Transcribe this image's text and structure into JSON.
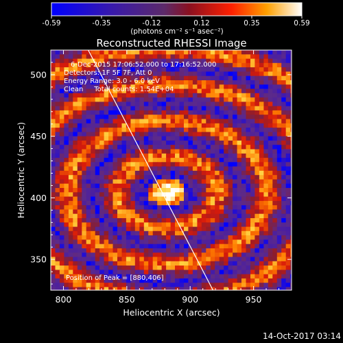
{
  "chart_data": {
    "type": "heatmap",
    "title": "Reconstructed RHESSI Image",
    "xlabel": "Heliocentric X (arcsec)",
    "ylabel": "Heliocentric Y (arcsec)",
    "xlim": [
      790,
      980
    ],
    "ylim": [
      325,
      520
    ],
    "x_ticks": [
      800,
      850,
      900,
      950
    ],
    "y_ticks": [
      350,
      400,
      450,
      500
    ],
    "colorbar": {
      "ticks": [
        "-0.59",
        "-0.35",
        "-0.12",
        "0.12",
        "0.35",
        "0.59"
      ],
      "range": [
        -0.59,
        0.59
      ],
      "unit_label": "(photons cm⁻² s⁻¹ asec⁻²)"
    },
    "annotations": {
      "time_range": "6-Dec-2015 17:06:52.000 to 17:16:52.000",
      "detectors": "Detectors: 1F 5F 7F, Att 0",
      "energy_range": "Energy Range: 3.0 - 6.0 keV",
      "clean": "Clean     Total counts: 1.54E+04",
      "peak": "Position of Peak = [880,406]"
    },
    "peak_position": [
      880,
      406
    ],
    "limb_line": [
      [
        812,
        535
      ],
      [
        918,
        325
      ]
    ],
    "footer_date": "14-Oct-2017 03:14",
    "grid": false,
    "colormap": [
      "#0000ff",
      "#4b1fa0",
      "#5c2a8a",
      "#8a1d2e",
      "#d81a0a",
      "#ff7d00",
      "#ffd040",
      "#ffffff"
    ]
  }
}
